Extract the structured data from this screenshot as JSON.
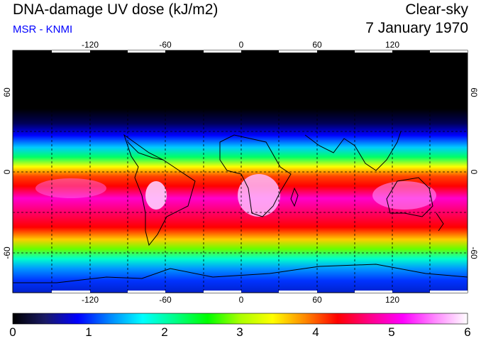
{
  "header": {
    "title": "DNA-damage UV dose (kJ/m2)",
    "subtitle": "MSR - KNMI",
    "condition": "Clear-sky",
    "date": "7 January 1970"
  },
  "map": {
    "lon_ticks": [
      "-120",
      "-60",
      "0",
      "60",
      "120"
    ],
    "lat_ticks": [
      "60",
      "0",
      "-60"
    ]
  },
  "colorbar": {
    "min": 0,
    "max": 6,
    "labels": [
      "0",
      "1",
      "2",
      "3",
      "4",
      "5",
      "6"
    ],
    "colors": [
      "#000000",
      "#1a1a66",
      "#0000ff",
      "#0088ff",
      "#00ffff",
      "#00ff88",
      "#00ff00",
      "#aaff00",
      "#ffff00",
      "#ff8800",
      "#ff0000",
      "#ff0088",
      "#ff00ff",
      "#ff88ff",
      "#ffffff"
    ]
  }
}
